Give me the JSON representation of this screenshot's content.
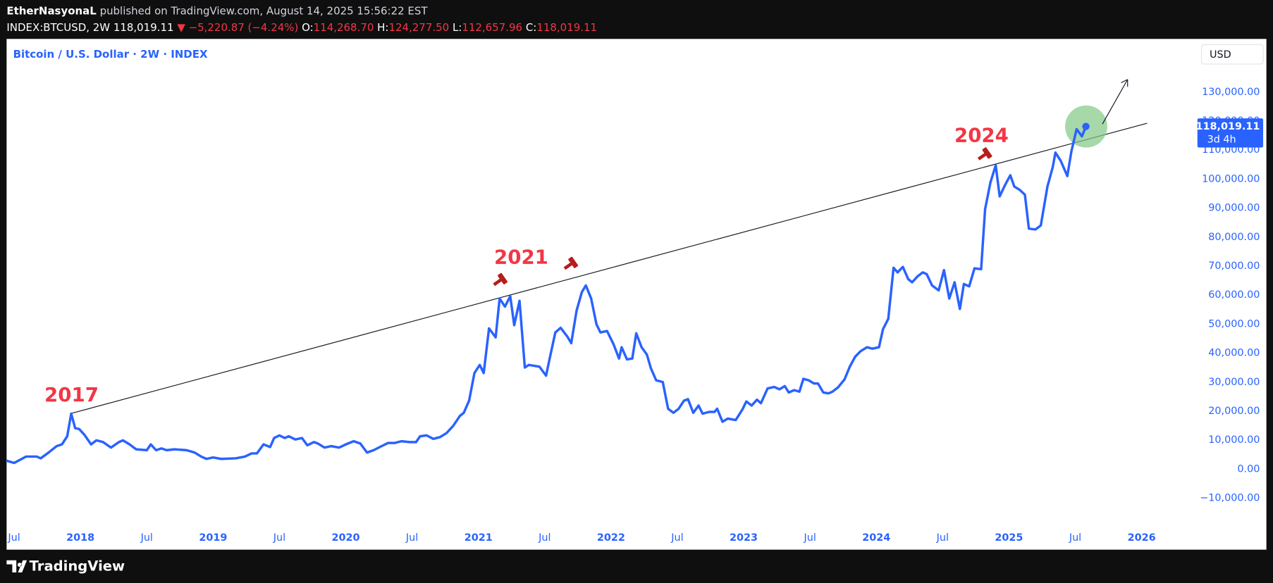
{
  "header": {
    "author": "EtherNasyonaL",
    "published": "published on TradingView.com, August 14, 2025 15:56:22 EST",
    "symbol": "INDEX:BTCUSD, 2W",
    "last": "118,019.11",
    "change": "▼ −5,220.87 (−4.24%)",
    "ohlc": [
      {
        "label": "O:",
        "value": "114,268.70"
      },
      {
        "label": "H:",
        "value": "124,277.50"
      },
      {
        "label": "L:",
        "value": "112,657.96"
      },
      {
        "label": "C:",
        "value": "118,019.11"
      }
    ]
  },
  "chart_data": {
    "type": "line",
    "title": "Bitcoin / U.S. Dollar · 2W · INDEX",
    "currency": "USD",
    "color": "#2962ff",
    "x": [
      2017.44,
      2017.5,
      2017.59,
      2017.67,
      2017.7,
      2017.76,
      2017.82,
      2017.86,
      2017.9,
      2017.93,
      2017.96,
      2017.99,
      2018.03,
      2018.08,
      2018.12,
      2018.17,
      2018.23,
      2018.29,
      2018.32,
      2018.37,
      2018.42,
      2018.5,
      2018.53,
      2018.57,
      2018.61,
      2018.65,
      2018.71,
      2018.8,
      2018.86,
      2018.91,
      2018.95,
      2019.0,
      2019.06,
      2019.17,
      2019.24,
      2019.29,
      2019.33,
      2019.38,
      2019.43,
      2019.46,
      2019.5,
      2019.54,
      2019.57,
      2019.62,
      2019.67,
      2019.71,
      2019.76,
      2019.79,
      2019.84,
      2019.89,
      2019.95,
      2020.0,
      2020.06,
      2020.11,
      2020.16,
      2020.21,
      2020.27,
      2020.32,
      2020.37,
      2020.42,
      2020.48,
      2020.53,
      2020.56,
      2020.61,
      2020.66,
      2020.71,
      2020.76,
      2020.81,
      2020.86,
      2020.89,
      2020.93,
      2020.97,
      2021.01,
      2021.04,
      2021.08,
      2021.13,
      2021.16,
      2021.2,
      2021.24,
      2021.27,
      2021.31,
      2021.35,
      2021.38,
      2021.46,
      2021.51,
      2021.54,
      2021.58,
      2021.62,
      2021.67,
      2021.7,
      2021.74,
      2021.78,
      2021.81,
      2021.85,
      2021.89,
      2021.92,
      2021.97,
      2022.02,
      2022.06,
      2022.08,
      2022.12,
      2022.16,
      2022.19,
      2022.23,
      2022.27,
      2022.3,
      2022.34,
      2022.39,
      2022.43,
      2022.47,
      2022.51,
      2022.55,
      2022.58,
      2022.62,
      2022.66,
      2022.69,
      2022.74,
      2022.78,
      2022.8,
      2022.84,
      2022.88,
      2022.94,
      2022.99,
      2023.02,
      2023.06,
      2023.1,
      2023.13,
      2023.18,
      2023.23,
      2023.27,
      2023.31,
      2023.34,
      2023.38,
      2023.42,
      2023.45,
      2023.49,
      2023.53,
      2023.56,
      2023.6,
      2023.64,
      2023.67,
      2023.71,
      2023.76,
      2023.8,
      2023.84,
      2023.88,
      2023.93,
      2023.97,
      2024.02,
      2024.05,
      2024.09,
      2024.13,
      2024.16,
      2024.2,
      2024.24,
      2024.27,
      2024.31,
      2024.35,
      2024.38,
      2024.42,
      2024.47,
      2024.51,
      2024.55,
      2024.59,
      2024.63,
      2024.66,
      2024.7,
      2024.74,
      2024.79,
      2024.82,
      2024.86,
      2024.9,
      2024.93,
      2024.97,
      2025.01,
      2025.04,
      2025.08,
      2025.12,
      2025.15,
      2025.2,
      2025.24,
      2025.29,
      2025.33,
      2025.35,
      2025.39,
      2025.44,
      2025.47,
      2025.51,
      2025.55,
      2025.58
    ],
    "values": [
      2800,
      2000,
      4200,
      4200,
      3600,
      5600,
      7800,
      8400,
      11200,
      19000,
      14000,
      13700,
      11700,
      8400,
      9800,
      9200,
      7300,
      9200,
      9800,
      8400,
      6700,
      6400,
      8400,
      6400,
      7000,
      6400,
      6700,
      6400,
      5600,
      4200,
      3400,
      3900,
      3400,
      3600,
      4200,
      5300,
      5300,
      8400,
      7500,
      10600,
      11500,
      10600,
      11200,
      10100,
      10600,
      8100,
      9200,
      8700,
      7300,
      7800,
      7300,
      8400,
      9500,
      8700,
      5600,
      6400,
      7800,
      8900,
      8900,
      9500,
      9200,
      9200,
      11200,
      11500,
      10300,
      10900,
      12300,
      14800,
      18200,
      19300,
      23500,
      33000,
      35800,
      33000,
      48400,
      45300,
      58700,
      55900,
      59500,
      49500,
      57900,
      34900,
      35800,
      35200,
      32100,
      38600,
      47000,
      48600,
      45600,
      43300,
      54500,
      60900,
      63200,
      58700,
      49800,
      47000,
      47500,
      42800,
      38000,
      41900,
      37700,
      38000,
      46700,
      41900,
      39400,
      34700,
      30500,
      29900,
      20700,
      19300,
      20700,
      23500,
      24000,
      19300,
      21800,
      19000,
      19600,
      19600,
      20700,
      16200,
      17300,
      16800,
      20400,
      23200,
      21800,
      23800,
      22600,
      27700,
      28200,
      27400,
      28500,
      26300,
      27100,
      26600,
      31000,
      30500,
      29400,
      29400,
      26300,
      26000,
      26600,
      28000,
      30800,
      35200,
      38600,
      40500,
      41900,
      41400,
      41900,
      48100,
      51700,
      69300,
      67700,
      69600,
      65400,
      64300,
      66300,
      67700,
      67100,
      63200,
      61500,
      68500,
      58700,
      64300,
      55100,
      63700,
      62900,
      69100,
      68800,
      89500,
      98700,
      104600,
      93900,
      97800,
      101200,
      97300,
      96200,
      94500,
      82800,
      82500,
      83900,
      97300,
      104000,
      109000,
      106200,
      100900,
      109300,
      117100,
      114600,
      118019.11
    ],
    "last_label": "118,019.11",
    "countdown": "3d 4h",
    "xlim": [
      2017.443,
      2026.39
    ],
    "xticks": [
      {
        "value": 2017.5,
        "label": "Jul"
      },
      2018,
      {
        "value": 2018.5,
        "label": "Jul"
      },
      2019,
      {
        "value": 2019.5,
        "label": "Jul"
      },
      2020,
      {
        "value": 2020.5,
        "label": "Jul"
      },
      2021,
      {
        "value": 2021.5,
        "label": "Jul"
      },
      2022,
      {
        "value": 2022.5,
        "label": "Jul"
      },
      2023,
      {
        "value": 2023.5,
        "label": "Jul"
      },
      2024,
      {
        "value": 2024.5,
        "label": "Jul"
      },
      2025,
      {
        "value": 2025.5,
        "label": "Jul"
      },
      2026
    ],
    "ylim": [
      -18700,
      148200
    ],
    "yticks": [
      {
        "value": -10000,
        "label": "−10,000.00"
      },
      {
        "value": 0,
        "label": "0.00"
      },
      {
        "value": 10000,
        "label": "10,000.00"
      },
      {
        "value": 20000,
        "label": "20,000.00"
      },
      {
        "value": 30000,
        "label": "30,000.00"
      },
      {
        "value": 40000,
        "label": "40,000.00"
      },
      {
        "value": 50000,
        "label": "50,000.00"
      },
      {
        "value": 60000,
        "label": "60,000.00"
      },
      {
        "value": 70000,
        "label": "70,000.00"
      },
      {
        "value": 80000,
        "label": "80,000.00"
      },
      {
        "value": 90000,
        "label": "90,000.00"
      },
      {
        "value": 100000,
        "label": "100,000.00"
      },
      {
        "value": 110000,
        "label": "110,000.00"
      },
      {
        "value": 120000,
        "label": "120,000.00"
      },
      {
        "value": 130000,
        "label": "130,000.00"
      }
    ],
    "grid": false,
    "annotations": [
      "2017",
      "2021",
      "2024"
    ]
  },
  "footer": {
    "brand": "TradingView"
  }
}
